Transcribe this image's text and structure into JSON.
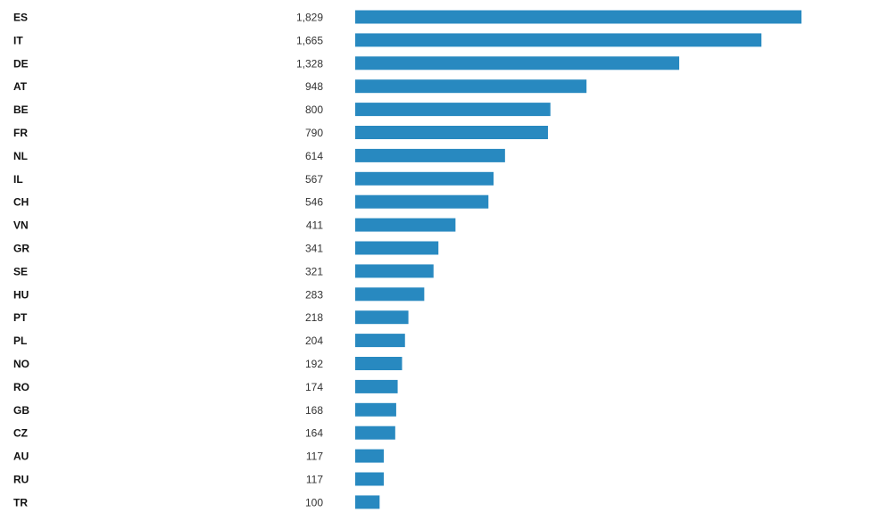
{
  "chart_data": {
    "type": "bar",
    "orientation": "horizontal",
    "categories": [
      "ES",
      "IT",
      "DE",
      "AT",
      "BE",
      "FR",
      "NL",
      "IL",
      "CH",
      "VN",
      "GR",
      "SE",
      "HU",
      "PT",
      "PL",
      "NO",
      "RO",
      "GB",
      "CZ",
      "AU",
      "RU",
      "TR"
    ],
    "values": [
      1829,
      1665,
      1328,
      948,
      800,
      790,
      614,
      567,
      546,
      411,
      341,
      321,
      283,
      218,
      204,
      192,
      174,
      168,
      164,
      117,
      117,
      100
    ],
    "value_labels": [
      "1,829",
      "1,665",
      "1,328",
      "948",
      "800",
      "790",
      "614",
      "567",
      "546",
      "411",
      "341",
      "321",
      "283",
      "218",
      "204",
      "192",
      "174",
      "168",
      "164",
      "117",
      "117",
      "100"
    ],
    "bar_color": "#2889c0",
    "grid": false,
    "legend": "none"
  }
}
